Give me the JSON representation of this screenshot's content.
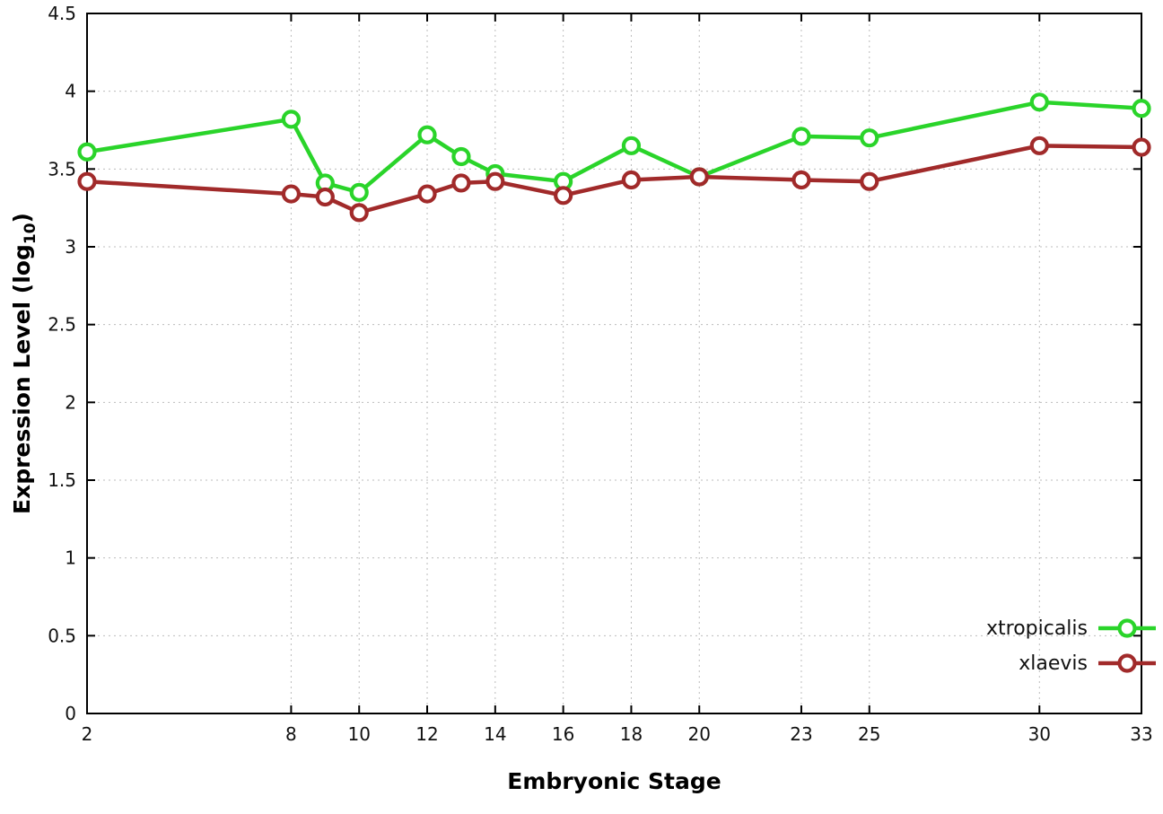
{
  "chart_data": {
    "type": "line",
    "title": "",
    "xlabel": "Embryonic Stage",
    "ylabel": "Expression Level (log10)",
    "ylabel_base": "Expression Level (log",
    "ylabel_sub": "10",
    "ylabel_close": ")",
    "xlim": [
      2,
      33
    ],
    "ylim": [
      0,
      4.5
    ],
    "x_ticks": [
      2,
      8,
      10,
      12,
      14,
      16,
      18,
      20,
      23,
      25,
      30,
      33
    ],
    "y_ticks": [
      0,
      0.5,
      1,
      1.5,
      2,
      2.5,
      3,
      3.5,
      4,
      4.5
    ],
    "grid": true,
    "legend_position": "bottom-right",
    "x": [
      2,
      8,
      9,
      10,
      12,
      13,
      14,
      16,
      18,
      20,
      23,
      25,
      30,
      33
    ],
    "series": [
      {
        "name": "xtropicalis",
        "color": "#2ad42a",
        "values": [
          3.61,
          3.82,
          3.41,
          3.35,
          3.72,
          3.58,
          3.47,
          3.42,
          3.65,
          3.45,
          3.71,
          3.7,
          3.93,
          3.89
        ]
      },
      {
        "name": "xlaevis",
        "color": "#a12a2a",
        "values": [
          3.42,
          3.34,
          3.32,
          3.22,
          3.34,
          3.41,
          3.42,
          3.33,
          3.43,
          3.45,
          3.43,
          3.42,
          3.65,
          3.64
        ]
      }
    ],
    "colors": {
      "grid": "#bcbcbc",
      "axis": "#000000",
      "text": "#111111",
      "marker_fill": "#ffffff"
    }
  }
}
